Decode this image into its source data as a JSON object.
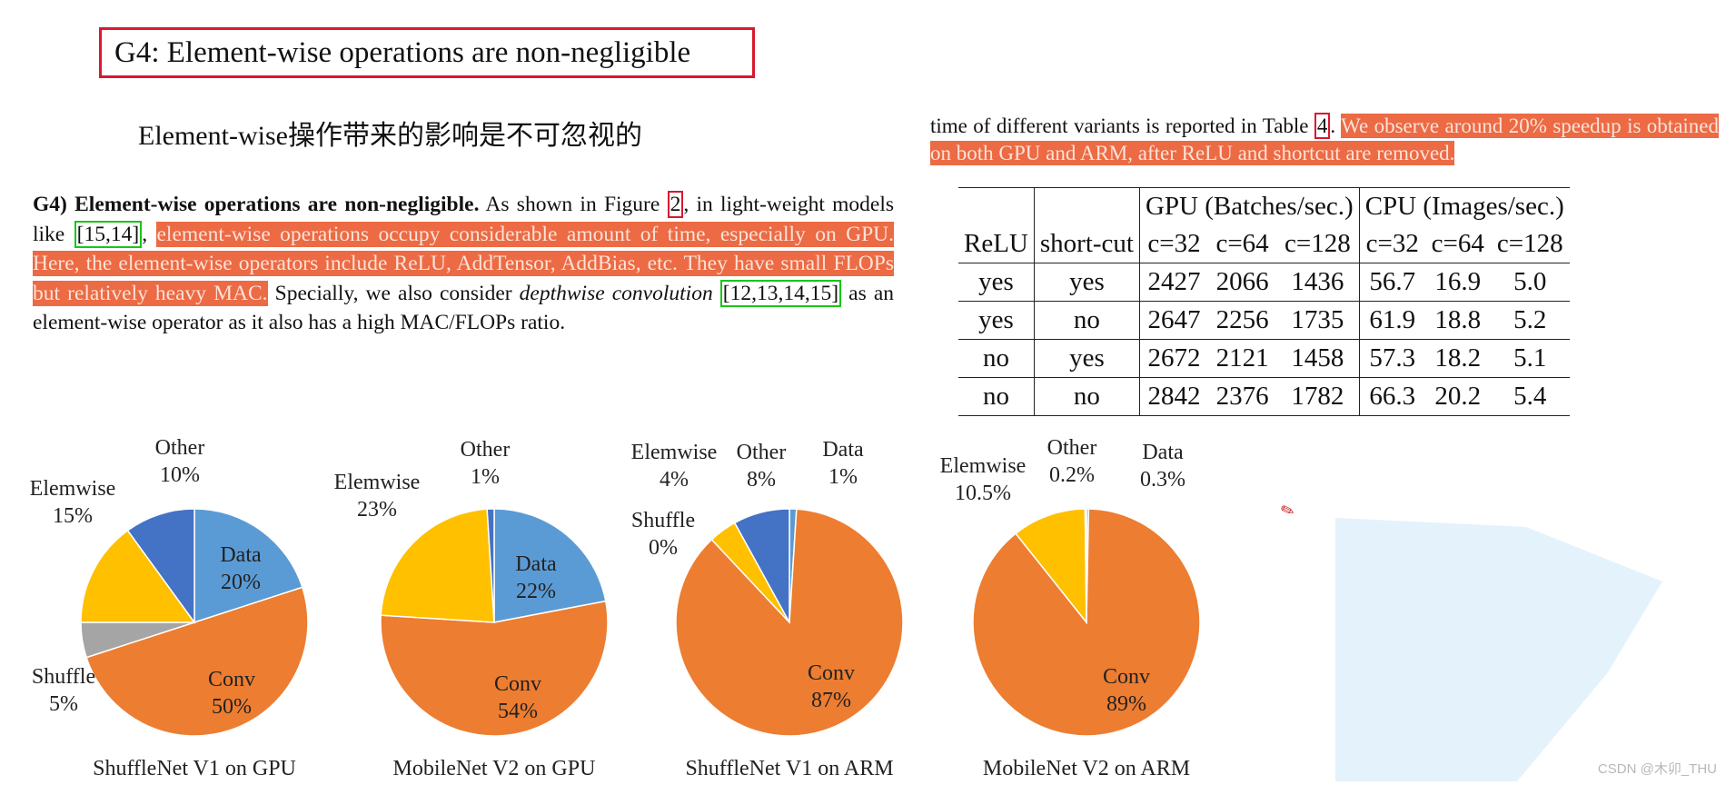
{
  "slide": {
    "title": "G4: Element-wise operations are non-negligible",
    "subtitle": "Element-wise操作带来的影响是不可忽视的"
  },
  "paper_left": {
    "lead": "G4) Element-wise operations are non-negligible.",
    "t1": " As shown in Figure ",
    "fig_ref": "2",
    "t2": ", in light-weight models like ",
    "cite1": "15,14",
    "t3": ", ",
    "highlight": "element-wise operations occupy considerable amount of time, especially on GPU. Here, the element-wise operators include ReLU, AddTensor, AddBias, etc. They have small FLOPs but relatively heavy MAC.",
    "t4": " Specially, we also consider ",
    "italic": "depthwise convolution",
    "t5": " ",
    "cite2": "12,13,14,15",
    "t6": " as an element-wise operator as it also has a high MAC/FLOPs ratio."
  },
  "paper_right": {
    "t1": "time of different variants is reported in Table ",
    "table_ref": "4",
    "t2": ". ",
    "highlight": "We observe around 20% speedup is obtained on both GPU and ARM, after ReLU and shortcut are removed."
  },
  "table": {
    "group_gpu": "GPU (Batches/sec.)",
    "group_cpu": "CPU (Images/sec.)",
    "headers": [
      "ReLU",
      "short-cut",
      "c=32",
      "c=64",
      "c=128",
      "c=32",
      "c=64",
      "c=128"
    ],
    "rows": [
      [
        "yes",
        "yes",
        "2427",
        "2066",
        "1436",
        "56.7",
        "16.9",
        "5.0"
      ],
      [
        "yes",
        "no",
        "2647",
        "2256",
        "1735",
        "61.9",
        "18.8",
        "5.2"
      ],
      [
        "no",
        "yes",
        "2672",
        "2121",
        "1458",
        "57.3",
        "18.2",
        "5.1"
      ],
      [
        "no",
        "no",
        "2842",
        "2376",
        "1782",
        "66.3",
        "20.2",
        "5.4"
      ]
    ]
  },
  "chart_data": [
    {
      "type": "pie",
      "title": "ShuffleNet V1 on GPU",
      "slices": [
        {
          "label": "Data",
          "value": 20,
          "pct": "20%",
          "color": "#5b9bd5"
        },
        {
          "label": "Conv",
          "value": 50,
          "pct": "50%",
          "color": "#ed7d31"
        },
        {
          "label": "Shuffle",
          "value": 5,
          "pct": "5%",
          "color": "#a5a5a5"
        },
        {
          "label": "Elemwise",
          "value": 15,
          "pct": "15%",
          "color": "#ffc000"
        },
        {
          "label": "Other",
          "value": 10,
          "pct": "10%",
          "color": "#4472c4"
        }
      ]
    },
    {
      "type": "pie",
      "title": "MobileNet V2 on GPU",
      "slices": [
        {
          "label": "Data",
          "value": 22,
          "pct": "22%",
          "color": "#5b9bd5"
        },
        {
          "label": "Conv",
          "value": 54,
          "pct": "54%",
          "color": "#ed7d31"
        },
        {
          "label": "Elemwise",
          "value": 23,
          "pct": "23%",
          "color": "#ffc000"
        },
        {
          "label": "Other",
          "value": 1,
          "pct": "1%",
          "color": "#4472c4"
        }
      ]
    },
    {
      "type": "pie",
      "title": "ShuffleNet V1 on ARM",
      "slices": [
        {
          "label": "Data",
          "value": 1,
          "pct": "1%",
          "color": "#5b9bd5"
        },
        {
          "label": "Conv",
          "value": 87,
          "pct": "87%",
          "color": "#ed7d31"
        },
        {
          "label": "Shuffle",
          "value": 0,
          "pct": "0%",
          "color": "#a5a5a5"
        },
        {
          "label": "Elemwise",
          "value": 4,
          "pct": "4%",
          "color": "#ffc000"
        },
        {
          "label": "Other",
          "value": 8,
          "pct": "8%",
          "color": "#4472c4"
        }
      ]
    },
    {
      "type": "pie",
      "title": "MobileNet V2 on ARM",
      "slices": [
        {
          "label": "Data",
          "value": 0.3,
          "pct": "0.3%",
          "color": "#5b9bd5"
        },
        {
          "label": "Conv",
          "value": 89,
          "pct": "89%",
          "color": "#ed7d31"
        },
        {
          "label": "Elemwise",
          "value": 10.5,
          "pct": "10.5%",
          "color": "#ffc000"
        },
        {
          "label": "Other",
          "value": 0.2,
          "pct": "0.2%",
          "color": "#4472c4"
        }
      ]
    }
  ],
  "colors": {
    "highlight": "#ec6a44",
    "title_border": "#d8182f",
    "cite_border": "#19c519"
  },
  "watermark": "CSDN @木卯_THU",
  "icons": {
    "pen": "pen-icon"
  }
}
